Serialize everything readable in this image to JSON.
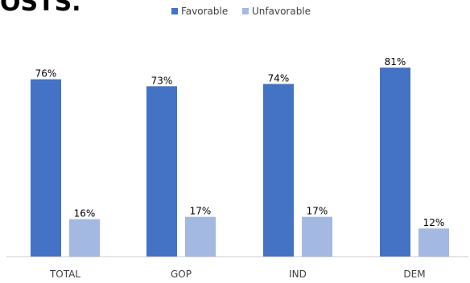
{
  "header_fragment": "OSTS.",
  "colors": {
    "favorable": "#4472c4",
    "unfavorable": "#a4b9e1",
    "axis": "#d0d0d0",
    "text": "#000000"
  },
  "chart_data": {
    "type": "bar",
    "categories": [
      "TOTAL",
      "GOP",
      "IND",
      "DEM"
    ],
    "series": [
      {
        "name": "Favorable",
        "values": [
          76,
          73,
          74,
          81
        ],
        "labels": [
          "76%",
          "73%",
          "74%",
          "81%"
        ]
      },
      {
        "name": "Unfavorable",
        "values": [
          16,
          17,
          17,
          12
        ],
        "labels": [
          "16%",
          "17%",
          "17%",
          "12%"
        ]
      }
    ],
    "title": "",
    "xlabel": "",
    "ylabel": "",
    "ylim": [
      0,
      100
    ],
    "grid": false,
    "legend_position": "top-center"
  }
}
